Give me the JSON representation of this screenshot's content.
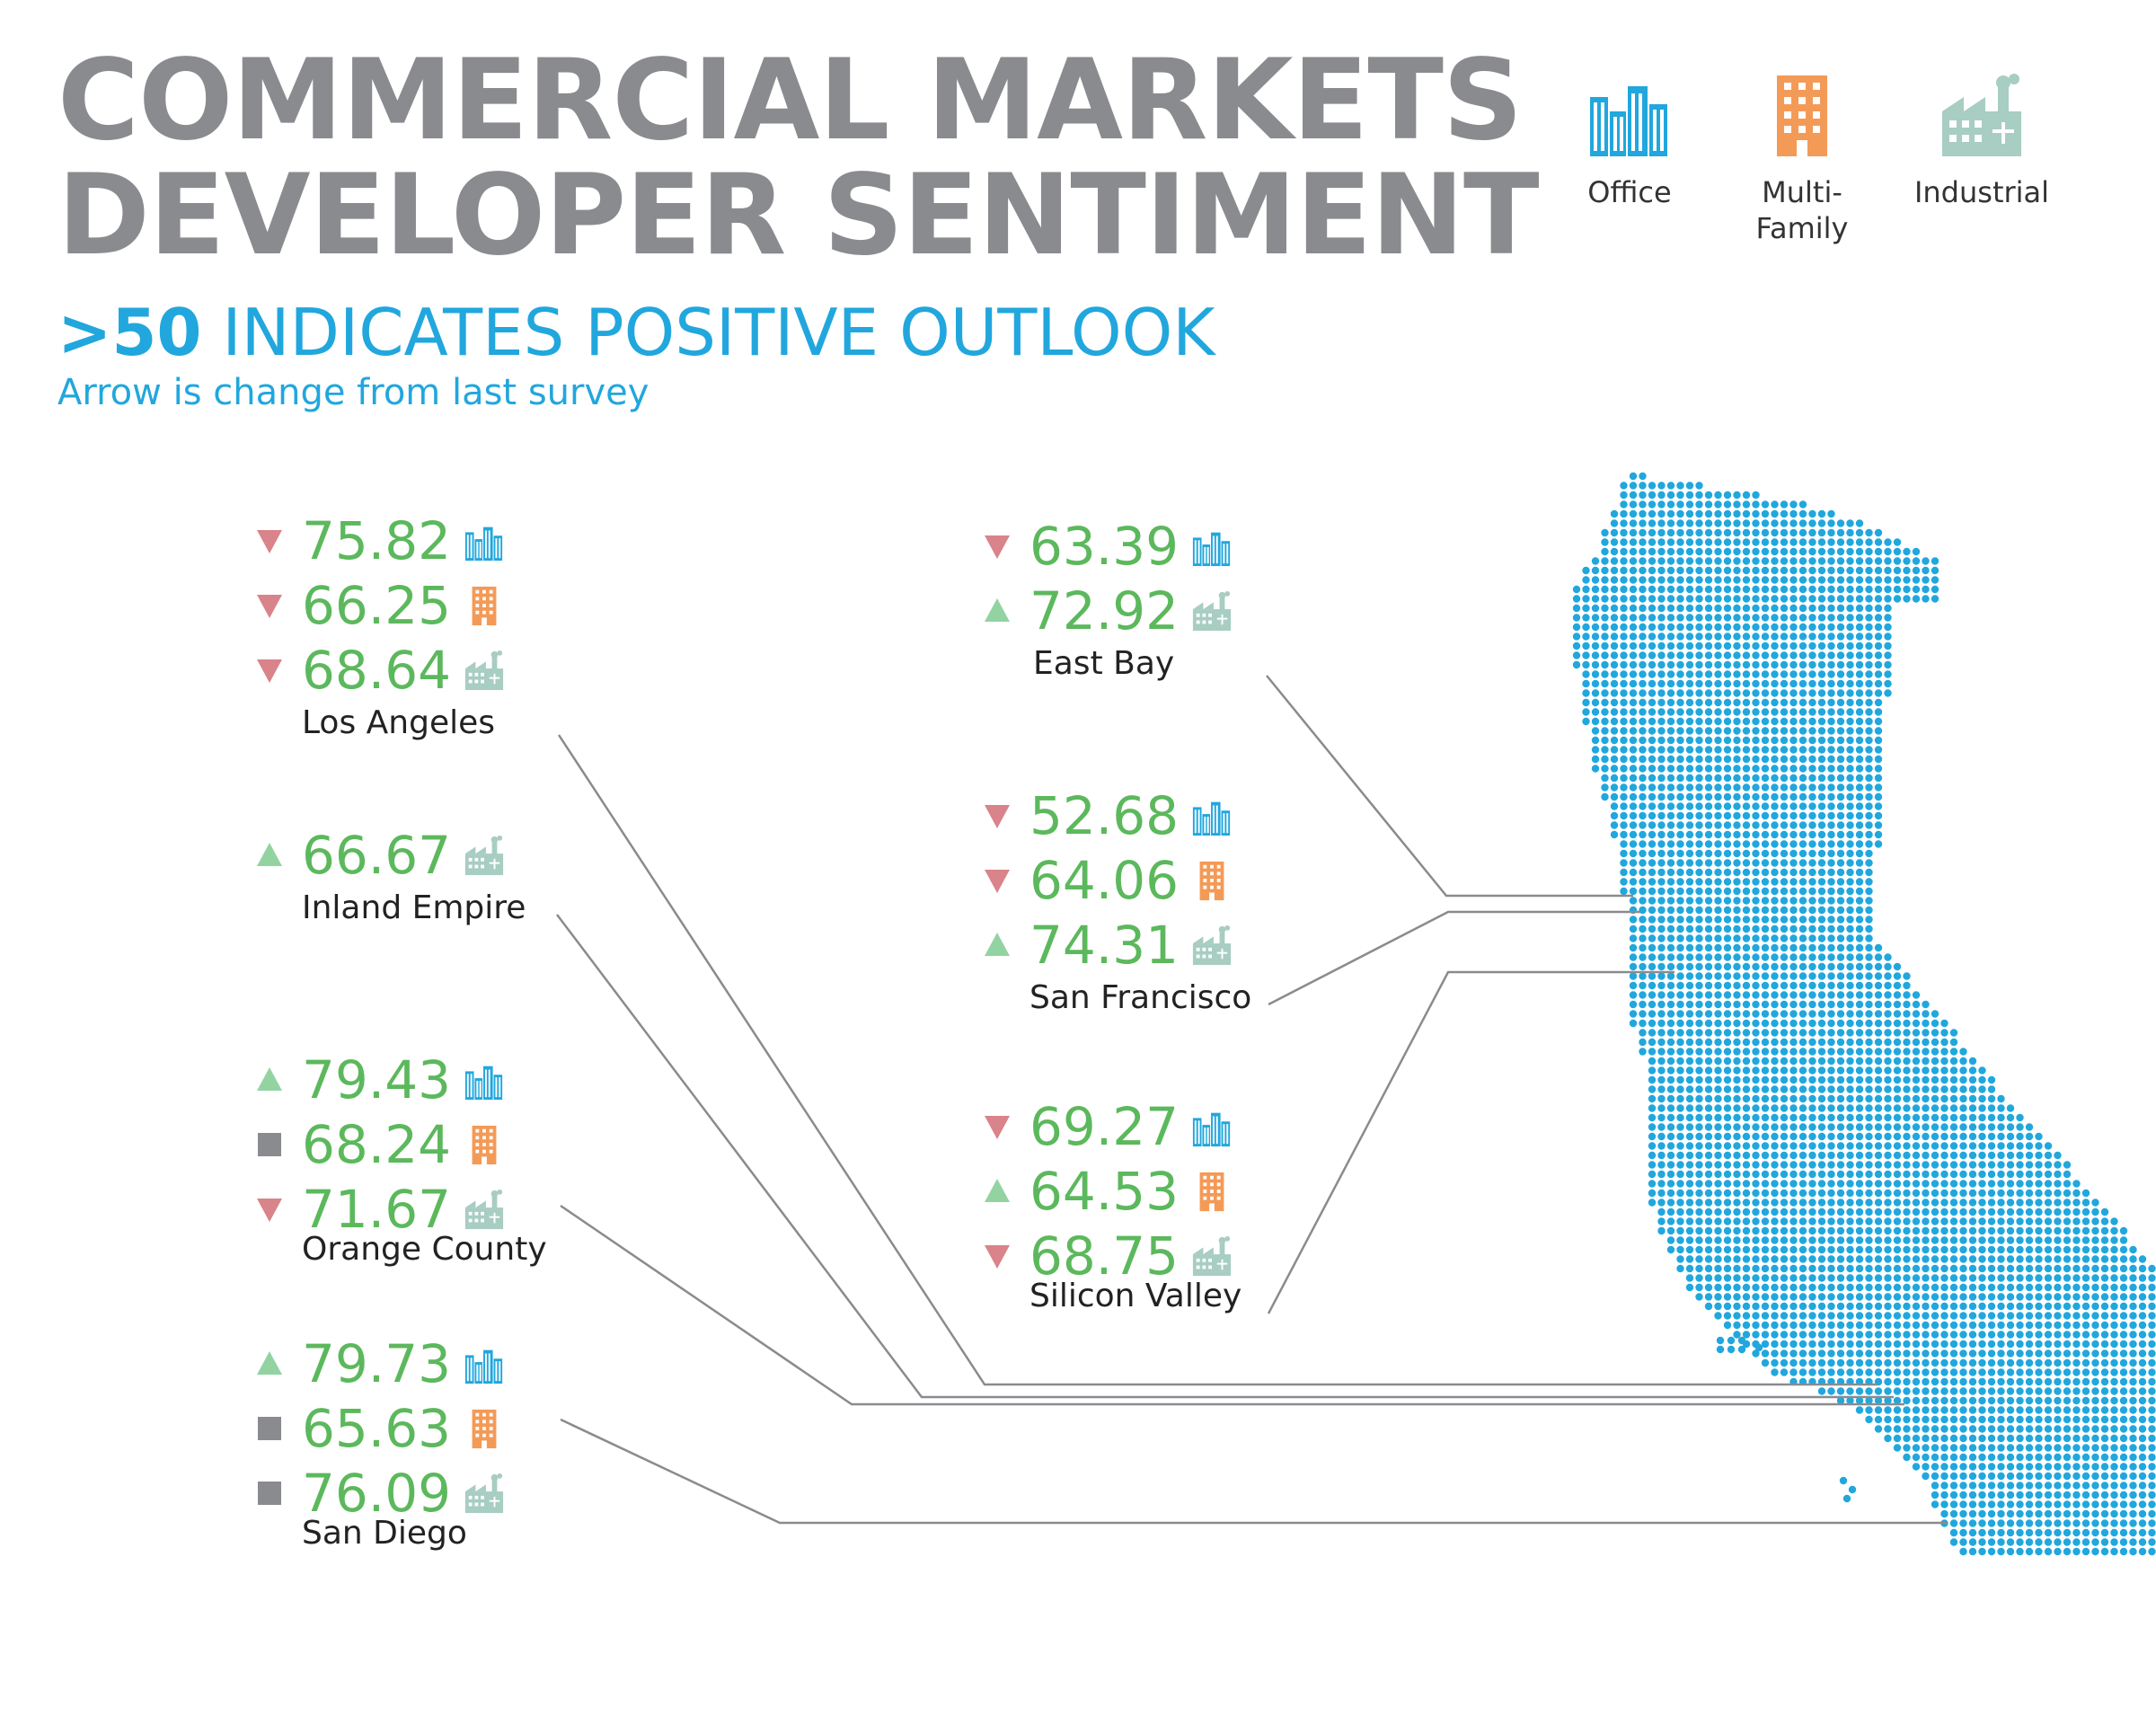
{
  "header": {
    "title_line1": "COMMERCIAL MARKETS",
    "title_line2": "DEVELOPER SENTIMENT",
    "subtitle_bold": ">50",
    "subtitle_rest": " INDICATES POSITIVE OUTLOOK",
    "note": "Arrow is change from last survey"
  },
  "legend": [
    {
      "label": "Office",
      "icon": "office-building-icon",
      "color": "#21a7dd"
    },
    {
      "label": "Multi-\nFamily",
      "icon": "apartment-building-icon",
      "color": "#f49a57"
    },
    {
      "label": "Industrial",
      "icon": "factory-icon",
      "color": "#a8cdc2"
    }
  ],
  "colors": {
    "value_text": "#5cb85c",
    "arrow_down": "#d9838a",
    "arrow_up": "#93d3a2",
    "no_change": "#8a8b8e",
    "map_dot": "#21a7dd",
    "connector": "#8a8b8e"
  },
  "regions": [
    {
      "name": "Los Angeles",
      "rows": [
        {
          "type": "office",
          "value": "75.82",
          "change": "down"
        },
        {
          "type": "multifamily",
          "value": "66.25",
          "change": "down"
        },
        {
          "type": "industrial",
          "value": "68.64",
          "change": "down"
        }
      ]
    },
    {
      "name": "Inland Empire",
      "rows": [
        {
          "type": "industrial",
          "value": "66.67",
          "change": "up"
        }
      ]
    },
    {
      "name": "Orange County",
      "rows": [
        {
          "type": "office",
          "value": "79.43",
          "change": "up"
        },
        {
          "type": "multifamily",
          "value": "68.24",
          "change": "none"
        },
        {
          "type": "industrial",
          "value": "71.67",
          "change": "down"
        }
      ]
    },
    {
      "name": "San Diego",
      "rows": [
        {
          "type": "office",
          "value": "79.73",
          "change": "up"
        },
        {
          "type": "multifamily",
          "value": "65.63",
          "change": "none"
        },
        {
          "type": "industrial",
          "value": "76.09",
          "change": "none"
        }
      ]
    },
    {
      "name": "East Bay",
      "rows": [
        {
          "type": "office",
          "value": "63.39",
          "change": "down"
        },
        {
          "type": "industrial",
          "value": "72.92",
          "change": "up"
        }
      ]
    },
    {
      "name": "San Francisco",
      "rows": [
        {
          "type": "office",
          "value": "52.68",
          "change": "down"
        },
        {
          "type": "multifamily",
          "value": "64.06",
          "change": "down"
        },
        {
          "type": "industrial",
          "value": "74.31",
          "change": "up"
        }
      ]
    },
    {
      "name": "Silicon Valley",
      "rows": [
        {
          "type": "office",
          "value": "69.27",
          "change": "down"
        },
        {
          "type": "multifamily",
          "value": "64.53",
          "change": "up"
        },
        {
          "type": "industrial",
          "value": "68.75",
          "change": "down"
        }
      ]
    }
  ]
}
